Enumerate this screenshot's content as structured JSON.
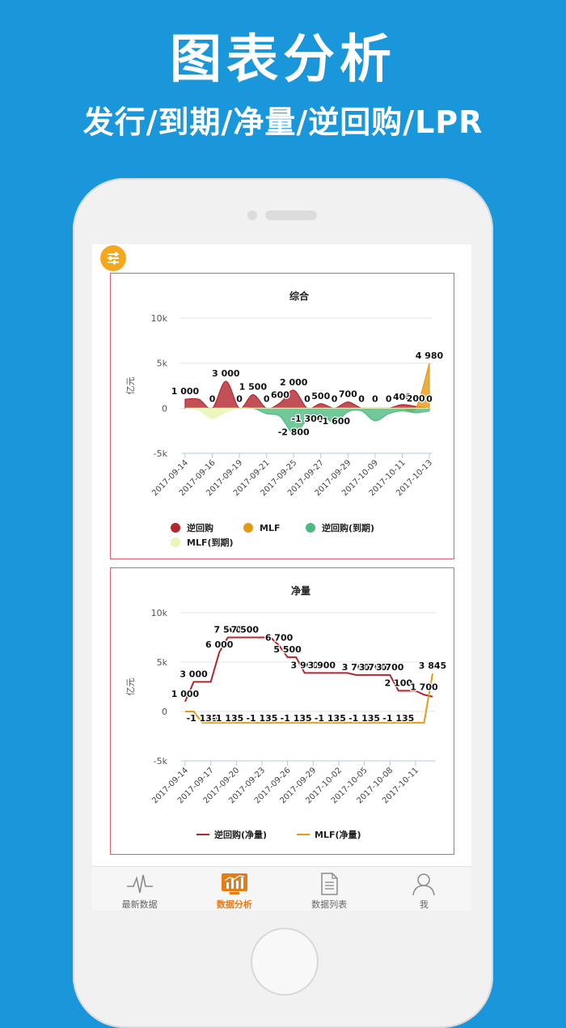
{
  "promo": {
    "title": "图表分析",
    "subtitle": "发行/到期/净量/逆回购/LPR"
  },
  "colors": {
    "background": "#1a97db",
    "reverse_repo": "#b3262d",
    "mlf": "#e59a17",
    "reverse_repo_due": "#4dbb7f",
    "mlf_due": "#eaf5b8",
    "accent": "#e87b14",
    "card_border": "#e06070"
  },
  "tabbar": [
    {
      "label": "最新数据",
      "icon": "pulse-icon",
      "active": false
    },
    {
      "label": "数据分析",
      "icon": "chart-monitor-icon",
      "active": true
    },
    {
      "label": "数据列表",
      "icon": "document-list-icon",
      "active": false
    },
    {
      "label": "我",
      "icon": "person-icon",
      "active": false
    }
  ],
  "chart_data": [
    {
      "type": "area",
      "title": "综合",
      "ylabel": "亿元",
      "ylim": [
        -5000,
        10000
      ],
      "yticks": [
        "10k",
        "5k",
        "0",
        "-5k"
      ],
      "x": [
        "2017-09-14",
        "2017-09-15",
        "2017-09-16",
        "2017-09-18",
        "2017-09-19",
        "2017-09-20",
        "2017-09-21",
        "2017-09-22",
        "2017-09-25",
        "2017-09-26",
        "2017-09-27",
        "2017-09-28",
        "2017-09-29",
        "2017-09-30",
        "2017-10-09",
        "2017-10-10",
        "2017-10-11",
        "2017-10-12",
        "2017-10-13"
      ],
      "xticks": [
        "2017-09-14",
        "2017-09-16",
        "2017-09-19",
        "2017-09-21",
        "2017-09-25",
        "2017-09-27",
        "2017-09-29",
        "2017-10-09",
        "2017-10-11",
        "2017-10-13"
      ],
      "legend": [
        "逆回购",
        "MLF",
        "逆回购(到期)",
        "MLF(到期)"
      ],
      "series": [
        {
          "name": "逆回购",
          "values": [
            1000,
            1000,
            0,
            3000,
            0,
            1500,
            0,
            600,
            2000,
            0,
            500,
            0,
            700,
            0,
            0,
            0,
            400,
            200,
            0
          ],
          "labels": [
            "1 000",
            "",
            "0",
            "3 000",
            "0",
            "1 500",
            "0",
            "600",
            "2 000",
            "0",
            "500",
            "0",
            "700",
            "0",
            "0",
            "0",
            "400",
            "200",
            "0"
          ]
        },
        {
          "name": "MLF",
          "values": [
            0,
            0,
            0,
            0,
            0,
            0,
            0,
            0,
            0,
            0,
            0,
            0,
            0,
            0,
            0,
            0,
            0,
            0,
            4980
          ],
          "labels": [
            "",
            "",
            "",
            "",
            "",
            "",
            "",
            "",
            "",
            "",
            "",
            "",
            "",
            "",
            "",
            "",
            "",
            "",
            "4 980"
          ]
        },
        {
          "name": "逆回购(到期)",
          "values": [
            0,
            0,
            0,
            0,
            0,
            0,
            -600,
            -900,
            -2800,
            -1300,
            -700,
            -1600,
            -400,
            -300,
            -1400,
            -600,
            -300,
            -500,
            -300
          ],
          "labels": [
            "",
            "",
            "",
            "",
            "",
            "",
            "",
            "",
            "-2 800",
            "-1 300",
            "",
            "-1 600",
            "",
            "",
            "",
            "",
            "",
            "",
            ""
          ]
        },
        {
          "name": "MLF(到期)",
          "values": [
            0,
            -200,
            -1135,
            -400,
            0,
            0,
            0,
            0,
            0,
            0,
            0,
            0,
            0,
            0,
            0,
            0,
            0,
            0,
            0
          ],
          "labels": [
            "",
            "",
            "",
            "",
            "",
            "",
            "",
            "",
            "",
            "",
            "",
            "",
            "",
            "",
            "",
            "",
            "",
            "",
            ""
          ]
        }
      ]
    },
    {
      "type": "line",
      "title": "净量",
      "ylabel": "亿元",
      "ylim": [
        -5000,
        10000
      ],
      "yticks": [
        "10k",
        "5k",
        "0",
        "-5k"
      ],
      "x": [
        "2017-09-14",
        "2017-09-15",
        "2017-09-16",
        "2017-09-17",
        "2017-09-18",
        "2017-09-19",
        "2017-09-20",
        "2017-09-21",
        "2017-09-22",
        "2017-09-23",
        "2017-09-24",
        "2017-09-25",
        "2017-09-26",
        "2017-09-27",
        "2017-09-28",
        "2017-09-29",
        "2017-09-30",
        "2017-10-01",
        "2017-10-02",
        "2017-10-03",
        "2017-10-04",
        "2017-10-05",
        "2017-10-06",
        "2017-10-07",
        "2017-10-08",
        "2017-10-09",
        "2017-10-10",
        "2017-10-11",
        "2017-10-12",
        "2017-10-13"
      ],
      "xticks": [
        "2017-09-14",
        "2017-09-17",
        "2017-09-20",
        "2017-09-23",
        "2017-09-26",
        "2017-09-29",
        "2017-10-02",
        "2017-10-05",
        "2017-10-08",
        "2017-10-11"
      ],
      "legend": [
        "逆回购(净量)",
        "MLF(净量)"
      ],
      "series": [
        {
          "name": "逆回购(净量)",
          "values": [
            1000,
            3000,
            3000,
            3000,
            6000,
            7500,
            7500,
            7500,
            7500,
            7500,
            7500,
            6700,
            5500,
            5500,
            3900,
            3900,
            3900,
            3900,
            3900,
            3900,
            3700,
            3700,
            3700,
            3700,
            3700,
            2100,
            2100,
            2100,
            1700,
            1500
          ],
          "labels": [
            "1 000",
            "3 000",
            "",
            "",
            "6 000",
            "7 500",
            "",
            "7 500",
            "",
            "",
            "",
            "6 700",
            "5 500",
            "",
            "3 900",
            "",
            "3 900",
            "",
            "",
            "",
            "3 700",
            "",
            "3 700",
            "",
            "3 700",
            "2 100",
            "",
            "",
            "1 700",
            ""
          ]
        },
        {
          "name": "MLF(净量)",
          "values": [
            0,
            0,
            -1135,
            -1135,
            -1135,
            -1135,
            -1135,
            -1135,
            -1135,
            -1135,
            -1135,
            -1135,
            -1135,
            -1135,
            -1135,
            -1135,
            -1135,
            -1135,
            -1135,
            -1135,
            -1135,
            -1135,
            -1135,
            -1135,
            -1135,
            -1135,
            -1135,
            -1135,
            -1135,
            3845
          ],
          "labels": [
            "",
            "",
            "-1 135",
            "",
            "",
            "-1 135",
            "",
            "",
            "",
            "-1 135",
            "",
            "",
            "",
            "-1 135",
            "",
            "",
            "",
            "-1 135",
            "",
            "",
            "",
            "-1 135",
            "",
            "",
            "",
            "-1 135",
            "",
            "",
            "",
            "3 845"
          ]
        }
      ]
    }
  ]
}
